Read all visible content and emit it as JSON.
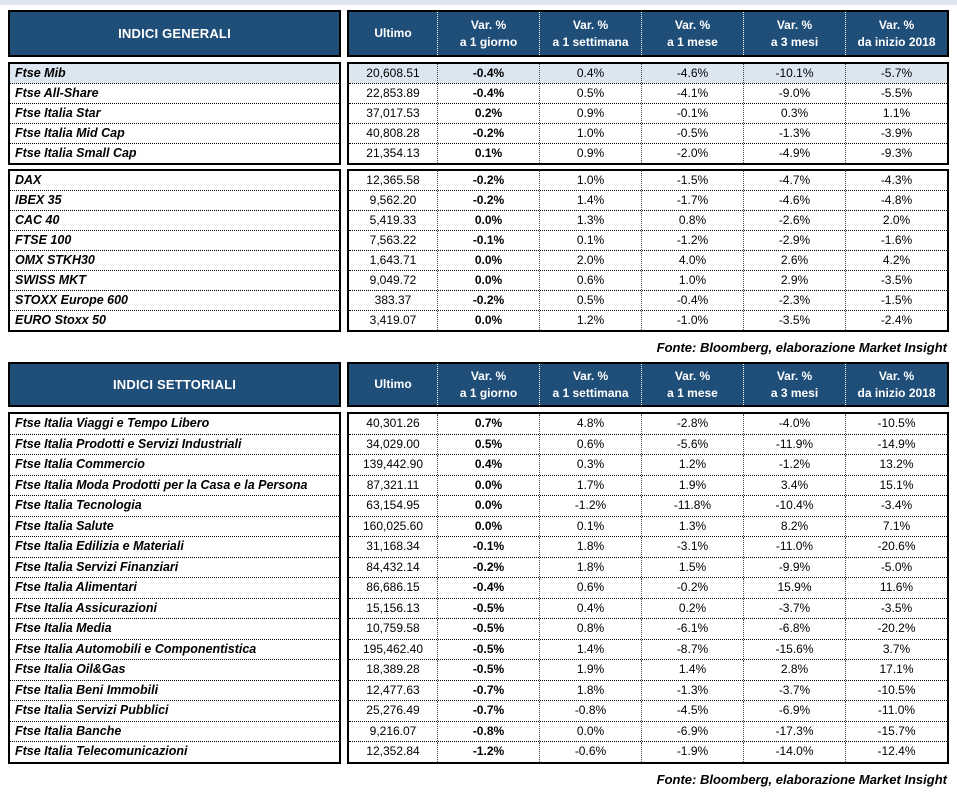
{
  "colors": {
    "header_bg": "#1F4E79",
    "header_text": "#FFFFFF",
    "highlight_row": "#DCE6F1",
    "border": "#000000"
  },
  "columns": {
    "ultimo": "Ultimo",
    "vars": [
      {
        "l1": "Var. %",
        "l2": "a 1 giorno"
      },
      {
        "l1": "Var. %",
        "l2": "a 1 settimana"
      },
      {
        "l1": "Var. %",
        "l2": "a 1 mese"
      },
      {
        "l1": "Var. %",
        "l2": "a 3 mesi"
      },
      {
        "l1": "Var. %",
        "l2": "da inizio 2018"
      }
    ]
  },
  "tables": [
    {
      "title": "INDICI GENERALI",
      "source": "Fonte: Bloomberg, elaborazione Market Insight",
      "groups": [
        {
          "rows": [
            {
              "name": "Ftse Mib",
              "highlight": true,
              "values": [
                "20,608.51",
                "-0.4%",
                "0.4%",
                "-4.6%",
                "-10.1%",
                "-5.7%"
              ]
            },
            {
              "name": "Ftse All-Share",
              "values": [
                "22,853.89",
                "-0.4%",
                "0.5%",
                "-4.1%",
                "-9.0%",
                "-5.5%"
              ]
            },
            {
              "name": "Ftse Italia Star",
              "values": [
                "37,017.53",
                "0.2%",
                "0.9%",
                "-0.1%",
                "0.3%",
                "1.1%"
              ]
            },
            {
              "name": "Ftse Italia Mid Cap",
              "values": [
                "40,808.28",
                "-0.2%",
                "1.0%",
                "-0.5%",
                "-1.3%",
                "-3.9%"
              ]
            },
            {
              "name": "Ftse Italia Small Cap",
              "values": [
                "21,354.13",
                "0.1%",
                "0.9%",
                "-2.0%",
                "-4.9%",
                "-9.3%"
              ]
            }
          ]
        },
        {
          "rows": [
            {
              "name": "DAX",
              "values": [
                "12,365.58",
                "-0.2%",
                "1.0%",
                "-1.5%",
                "-4.7%",
                "-4.3%"
              ]
            },
            {
              "name": "IBEX 35",
              "values": [
                "9,562.20",
                "-0.2%",
                "1.4%",
                "-1.7%",
                "-4.6%",
                "-4.8%"
              ]
            },
            {
              "name": "CAC 40",
              "values": [
                "5,419.33",
                "0.0%",
                "1.3%",
                "0.8%",
                "-2.6%",
                "2.0%"
              ]
            },
            {
              "name": "FTSE 100",
              "values": [
                "7,563.22",
                "-0.1%",
                "0.1%",
                "-1.2%",
                "-2.9%",
                "-1.6%"
              ]
            },
            {
              "name": "OMX STKH30",
              "values": [
                "1,643.71",
                "0.0%",
                "2.0%",
                "4.0%",
                "2.6%",
                "4.2%"
              ]
            },
            {
              "name": "SWISS MKT",
              "values": [
                "9,049.72",
                "0.0%",
                "0.6%",
                "1.0%",
                "2.9%",
                "-3.5%"
              ]
            },
            {
              "name": "STOXX Europe 600",
              "values": [
                "383.37",
                "-0.2%",
                "0.5%",
                "-0.4%",
                "-2.3%",
                "-1.5%"
              ]
            },
            {
              "name": "EURO Stoxx 50",
              "values": [
                "3,419.07",
                "0.0%",
                "1.2%",
                "-1.0%",
                "-3.5%",
                "-2.4%"
              ]
            }
          ]
        }
      ]
    },
    {
      "title": "INDICI SETTORIALI",
      "source": "Fonte: Bloomberg, elaborazione Market Insight",
      "groups": [
        {
          "rows": [
            {
              "name": "Ftse Italia Viaggi e Tempo Libero",
              "values": [
                "40,301.26",
                "0.7%",
                "4.8%",
                "-2.8%",
                "-4.0%",
                "-10.5%"
              ]
            },
            {
              "name": "Ftse Italia Prodotti e Servizi Industriali",
              "values": [
                "34,029.00",
                "0.5%",
                "0.6%",
                "-5.6%",
                "-11.9%",
                "-14.9%"
              ]
            },
            {
              "name": "Ftse Italia Commercio",
              "values": [
                "139,442.90",
                "0.4%",
                "0.3%",
                "1.2%",
                "-1.2%",
                "13.2%"
              ]
            },
            {
              "name": "Ftse Italia Moda Prodotti per la Casa e la Persona",
              "values": [
                "87,321.11",
                "0.0%",
                "1.7%",
                "1.9%",
                "3.4%",
                "15.1%"
              ]
            },
            {
              "name": "Ftse Italia Tecnologia",
              "values": [
                "63,154.95",
                "0.0%",
                "-1.2%",
                "-11.8%",
                "-10.4%",
                "-3.4%"
              ]
            },
            {
              "name": "Ftse Italia Salute",
              "values": [
                "160,025.60",
                "0.0%",
                "0.1%",
                "1.3%",
                "8.2%",
                "7.1%"
              ]
            },
            {
              "name": "Ftse Italia Edilizia e Materiali",
              "values": [
                "31,168.34",
                "-0.1%",
                "1.8%",
                "-3.1%",
                "-11.0%",
                "-20.6%"
              ]
            },
            {
              "name": "Ftse Italia Servizi Finanziari",
              "values": [
                "84,432.14",
                "-0.2%",
                "1.8%",
                "1.5%",
                "-9.9%",
                "-5.0%"
              ]
            },
            {
              "name": "Ftse Italia Alimentari",
              "values": [
                "86,686.15",
                "-0.4%",
                "0.6%",
                "-0.2%",
                "15.9%",
                "11.6%"
              ]
            },
            {
              "name": "Ftse Italia Assicurazioni",
              "values": [
                "15,156.13",
                "-0.5%",
                "0.4%",
                "0.2%",
                "-3.7%",
                "-3.5%"
              ]
            },
            {
              "name": "Ftse Italia Media",
              "values": [
                "10,759.58",
                "-0.5%",
                "0.8%",
                "-6.1%",
                "-6.8%",
                "-20.2%"
              ]
            },
            {
              "name": "Ftse Italia Automobili e Componentistica",
              "values": [
                "195,462.40",
                "-0.5%",
                "1.4%",
                "-8.7%",
                "-15.6%",
                "3.7%"
              ]
            },
            {
              "name": "Ftse Italia Oil&Gas",
              "values": [
                "18,389.28",
                "-0.5%",
                "1.9%",
                "1.4%",
                "2.8%",
                "17.1%"
              ]
            },
            {
              "name": "Ftse Italia Beni Immobili",
              "values": [
                "12,477.63",
                "-0.7%",
                "1.8%",
                "-1.3%",
                "-3.7%",
                "-10.5%"
              ]
            },
            {
              "name": "Ftse Italia Servizi Pubblici",
              "values": [
                "25,276.49",
                "-0.7%",
                "-0.8%",
                "-4.5%",
                "-6.9%",
                "-11.0%"
              ]
            },
            {
              "name": "Ftse Italia Banche",
              "values": [
                "9,216.07",
                "-0.8%",
                "0.0%",
                "-6.9%",
                "-17.3%",
                "-15.7%"
              ]
            },
            {
              "name": "Ftse Italia Telecomunicazioni",
              "values": [
                "12,352.84",
                "-1.2%",
                "-0.6%",
                "-1.9%",
                "-14.0%",
                "-12.4%"
              ]
            }
          ]
        }
      ]
    }
  ]
}
